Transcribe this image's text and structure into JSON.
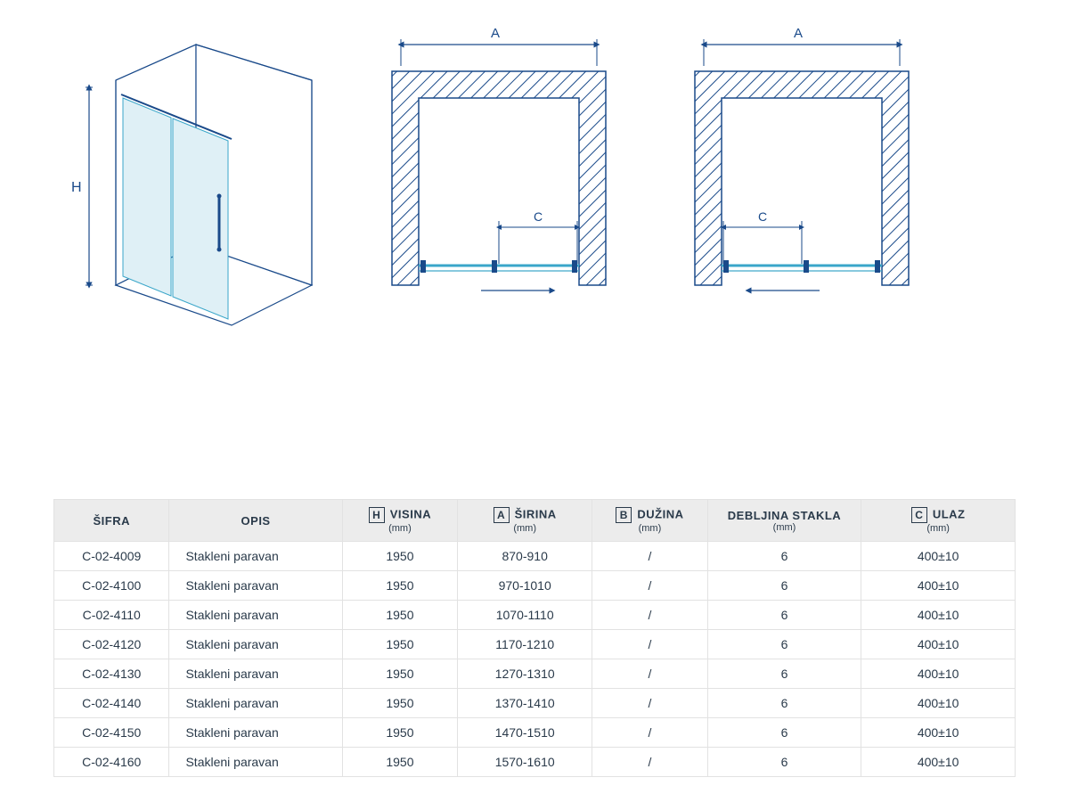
{
  "colors": {
    "line": "#1a4a8a",
    "glass_fill": "#dff0f6",
    "glass_stroke": "#3aa6c9",
    "text": "#2a3a4a",
    "header_bg": "#ececec",
    "cell_border": "#e2e2e2",
    "white": "#ffffff"
  },
  "labels": {
    "H": "H",
    "A": "A",
    "C": "C"
  },
  "table": {
    "headers": {
      "sifra": "ŠIFRA",
      "opis": "OPIS",
      "visina": "VISINA",
      "visina_sub": "(mm)",
      "visina_box": "H",
      "sirina": "ŠIRINA",
      "sirina_sub": "(mm)",
      "sirina_box": "A",
      "duzina": "DUŽINA",
      "duzina_sub": "(mm)",
      "duzina_box": "B",
      "debljina": "DEBLJINA STAKLA",
      "debljina_sub": "(mm)",
      "ulaz": "ULAZ",
      "ulaz_sub": "(mm)",
      "ulaz_box": "C"
    },
    "rows": [
      [
        "C-02-4009",
        "Stakleni paravan",
        "1950",
        "870-910",
        "/",
        "6",
        "400±10"
      ],
      [
        "C-02-4100",
        "Stakleni paravan",
        "1950",
        "970-1010",
        "/",
        "6",
        "400±10"
      ],
      [
        "C-02-4110",
        "Stakleni paravan",
        "1950",
        "1070-1110",
        "/",
        "6",
        "400±10"
      ],
      [
        "C-02-4120",
        "Stakleni paravan",
        "1950",
        "1170-1210",
        "/",
        "6",
        "400±10"
      ],
      [
        "C-02-4130",
        "Stakleni paravan",
        "1950",
        "1270-1310",
        "/",
        "6",
        "400±10"
      ],
      [
        "C-02-4140",
        "Stakleni paravan",
        "1950",
        "1370-1410",
        "/",
        "6",
        "400±10"
      ],
      [
        "C-02-4150",
        "Stakleni paravan",
        "1950",
        "1470-1510",
        "/",
        "6",
        "400±10"
      ],
      [
        "C-02-4160",
        "Stakleni paravan",
        "1950",
        "1570-1610",
        "/",
        "6",
        "400±10"
      ]
    ]
  }
}
